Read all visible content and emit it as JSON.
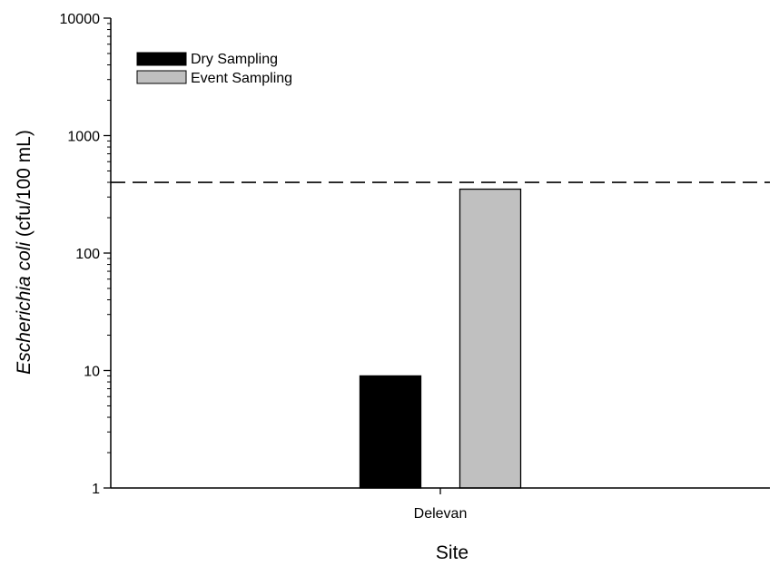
{
  "chart_data": {
    "type": "bar",
    "yscale": "log",
    "ylim": [
      1,
      10000
    ],
    "yticks": [
      "1",
      "10",
      "100",
      "1000",
      "10000"
    ],
    "categories": [
      "Delevan"
    ],
    "series": [
      {
        "name": "Dry Sampling",
        "values": [
          9
        ],
        "color": "#000000"
      },
      {
        "name": "Event Sampling",
        "values": [
          350
        ],
        "color": "#c0c0c0"
      }
    ],
    "reference_line": {
      "value": 400,
      "style": "dashed"
    },
    "xlabel": "Site",
    "ylabel_italic": "Escherichia coli",
    "ylabel_rest": " (cfu/100 mL)",
    "legend_position": "top-left"
  }
}
